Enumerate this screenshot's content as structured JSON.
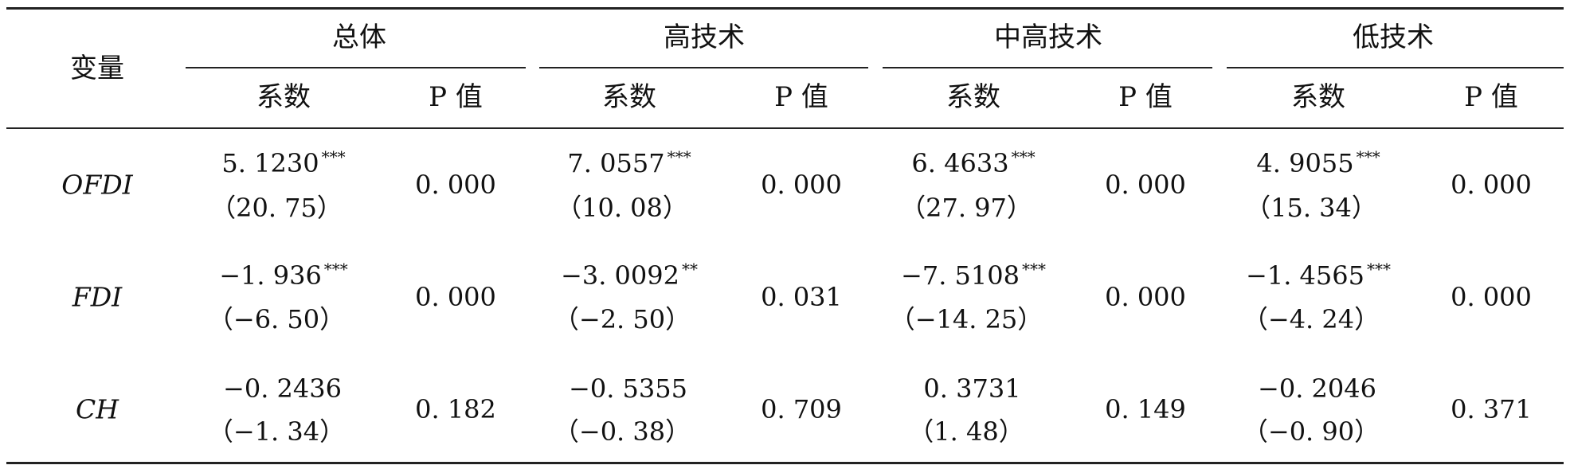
{
  "table": {
    "header": {
      "var_label": "变量",
      "groups": [
        "总体",
        "高技术",
        "中高技术",
        "低技术"
      ],
      "coef_label": "系数",
      "p_label": "P 值"
    },
    "rows": [
      {
        "var": "OFDI",
        "cells": [
          {
            "coef": "5. 1230",
            "stars": "***",
            "t": "（20. 75）",
            "p": "0. 000"
          },
          {
            "coef": "7. 0557",
            "stars": "***",
            "t": "（10. 08）",
            "p": "0. 000"
          },
          {
            "coef": "6. 4633",
            "stars": "***",
            "t": "（27. 97）",
            "p": "0. 000"
          },
          {
            "coef": "4. 9055",
            "stars": "***",
            "t": "（15. 34）",
            "p": "0. 000"
          }
        ]
      },
      {
        "var": "FDI",
        "cells": [
          {
            "coef": "−1. 936",
            "stars": "***",
            "t": "（−6. 50）",
            "p": "0. 000"
          },
          {
            "coef": "−3. 0092",
            "stars": "**",
            "t": "（−2. 50）",
            "p": "0. 031"
          },
          {
            "coef": "−7. 5108",
            "stars": "***",
            "t": "（−14. 25）",
            "p": "0. 000"
          },
          {
            "coef": "−1. 4565",
            "stars": "***",
            "t": "（−4. 24）",
            "p": "0. 000"
          }
        ]
      },
      {
        "var": "CH",
        "cells": [
          {
            "coef": "−0. 2436",
            "stars": "",
            "t": "（−1. 34）",
            "p": "0. 182"
          },
          {
            "coef": "−0. 5355",
            "stars": "",
            "t": "（−0. 38）",
            "p": "0. 709"
          },
          {
            "coef": "0. 3731",
            "stars": "",
            "t": "（1. 48）",
            "p": "0. 149"
          },
          {
            "coef": "−0. 2046",
            "stars": "",
            "t": "（−0. 90）",
            "p": "0. 371"
          }
        ]
      }
    ]
  }
}
